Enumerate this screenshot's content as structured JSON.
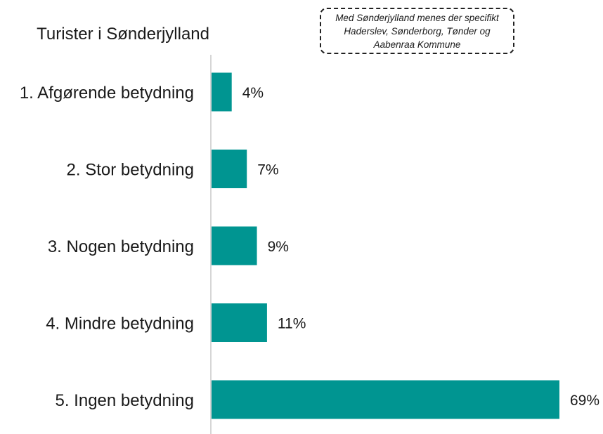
{
  "colors": {
    "bar": "#009591",
    "axis": "#d6d6d6",
    "text": "#1a1a1a"
  },
  "chart_data": {
    "type": "bar",
    "orientation": "horizontal",
    "title": "Turister i Sønderjylland",
    "note": "Med Sønderjylland menes der specifikt Haderslev, Sønderborg, Tønder og Aabenraa Kommune",
    "categories": [
      "1. Afgørende betydning",
      "2. Stor betydning",
      "3. Nogen betydning",
      "4. Mindre betydning",
      "5. Ingen betydning"
    ],
    "values": [
      4,
      7,
      9,
      11,
      69
    ],
    "value_labels": [
      "4%",
      "7%",
      "9%",
      "11%",
      "69%"
    ],
    "unit": "%",
    "xlim": [
      0,
      69
    ],
    "grid": false,
    "legend": "none"
  }
}
